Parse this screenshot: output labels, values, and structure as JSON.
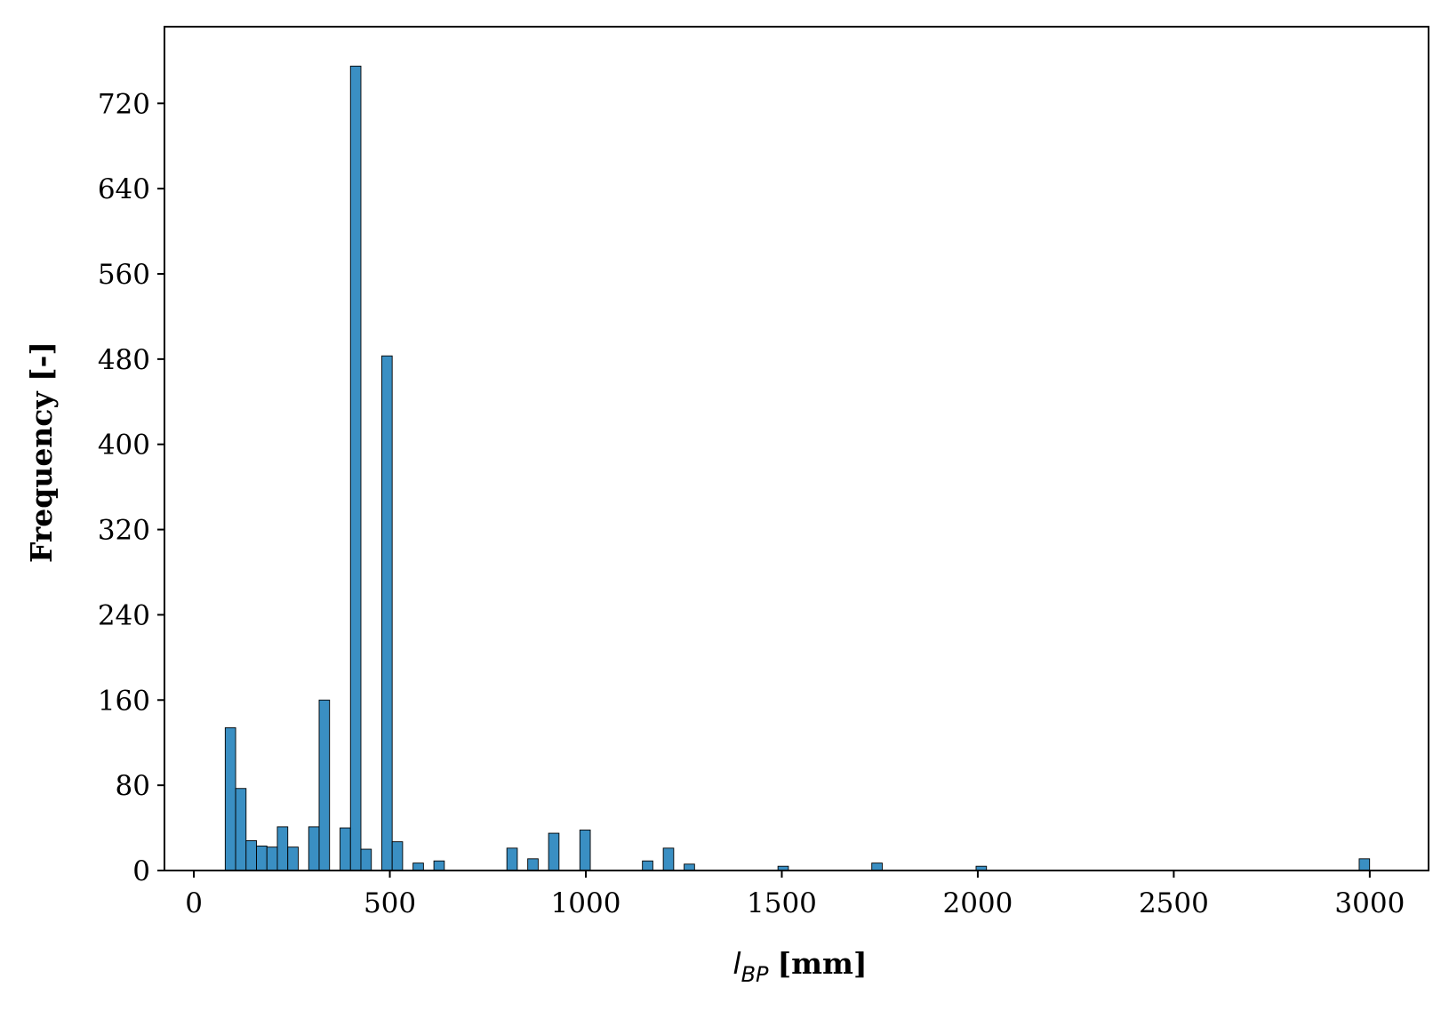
{
  "chart_data": {
    "type": "bar",
    "subtype": "histogram",
    "xlabel": {
      "symbol": "l",
      "subscript": "BP",
      "unit": "[mm]"
    },
    "ylabel": "Frequency [-]",
    "xlim": [
      -75,
      3150
    ],
    "ylim": [
      0,
      792
    ],
    "xticks": [
      0,
      500,
      1000,
      1500,
      2000,
      2500,
      3000
    ],
    "xtick_labels": [
      "0",
      "500",
      "1000",
      "1500",
      "2000",
      "2500",
      "3000"
    ],
    "yticks": [
      0,
      80,
      160,
      240,
      320,
      400,
      480,
      560,
      640,
      720
    ],
    "ytick_labels": [
      "0",
      "80",
      "160",
      "240",
      "320",
      "400",
      "480",
      "560",
      "640",
      "720"
    ],
    "bin_width": 26.6,
    "bar_color": "#3a8fc3",
    "bar_edge_color": "#000000",
    "bins": [
      {
        "x0": 80,
        "count": 134
      },
      {
        "x0": 106.6,
        "count": 77
      },
      {
        "x0": 133.2,
        "count": 28
      },
      {
        "x0": 159.8,
        "count": 23
      },
      {
        "x0": 186.4,
        "count": 22
      },
      {
        "x0": 213,
        "count": 41
      },
      {
        "x0": 239.6,
        "count": 22
      },
      {
        "x0": 293,
        "count": 41
      },
      {
        "x0": 319.6,
        "count": 160
      },
      {
        "x0": 373,
        "count": 40
      },
      {
        "x0": 399.6,
        "count": 755
      },
      {
        "x0": 426.2,
        "count": 20
      },
      {
        "x0": 479.4,
        "count": 483
      },
      {
        "x0": 506,
        "count": 27
      },
      {
        "x0": 559.2,
        "count": 7
      },
      {
        "x0": 612.4,
        "count": 9
      },
      {
        "x0": 798.6,
        "count": 21
      },
      {
        "x0": 851.8,
        "count": 11
      },
      {
        "x0": 905,
        "count": 35
      },
      {
        "x0": 984.8,
        "count": 38
      },
      {
        "x0": 1144.4,
        "count": 9
      },
      {
        "x0": 1197.6,
        "count": 21
      },
      {
        "x0": 1250.8,
        "count": 6
      },
      {
        "x0": 1490.2,
        "count": 4
      },
      {
        "x0": 1729.6,
        "count": 7
      },
      {
        "x0": 1995.6,
        "count": 4
      },
      {
        "x0": 2973,
        "count": 11
      }
    ],
    "grid": false,
    "legend": "none"
  }
}
